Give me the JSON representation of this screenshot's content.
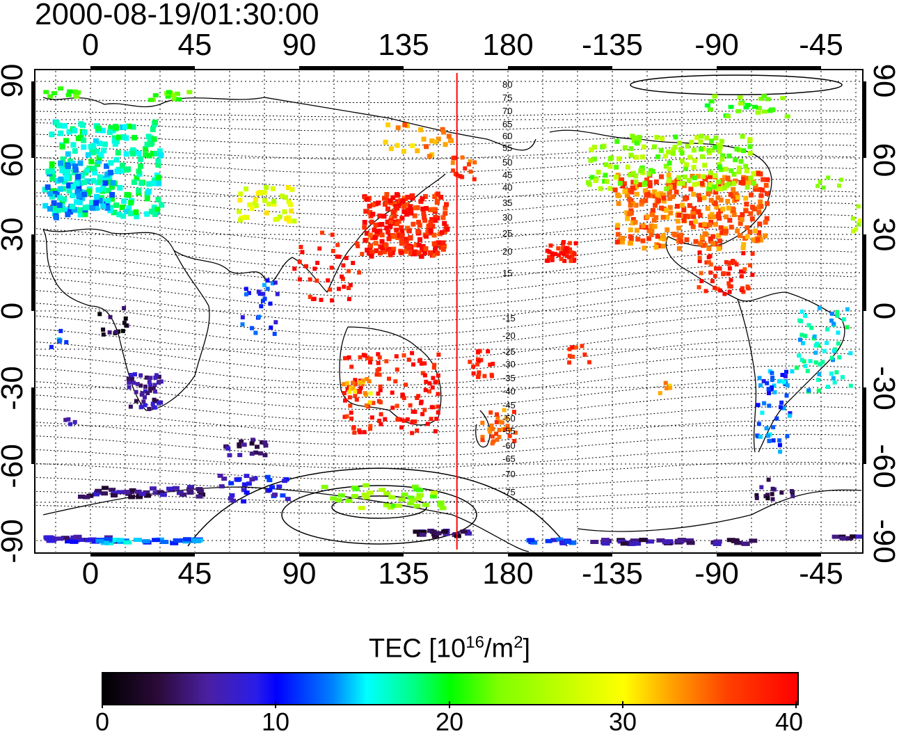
{
  "title": "2000-08-19/01:30:00",
  "longitude_ticks": [
    "0",
    "45",
    "90",
    "135",
    "180",
    "-135",
    "-90",
    "-45"
  ],
  "latitude_ticks": [
    "90",
    "60",
    "30",
    "0",
    "-30",
    "-60",
    "-90"
  ],
  "contour_labels": [
    "80",
    "75",
    "70",
    "65",
    "60",
    "55",
    "50",
    "45",
    "40",
    "35",
    "30",
    "25",
    "20",
    "15",
    "-15",
    "-20",
    "-25",
    "-30",
    "-35",
    "-40",
    "-45",
    "-50",
    "-55",
    "-60",
    "-65",
    "-70",
    "-75"
  ],
  "colorbar": {
    "label_prefix": "TEC  [10",
    "label_sup1": "16",
    "label_mid": "/m",
    "label_sup2": "2",
    "label_suffix": "]",
    "ticks": [
      "0",
      "10",
      "20",
      "30",
      "40"
    ],
    "colors": [
      "#000000",
      "#3a0a6e",
      "#0000ff",
      "#00ffff",
      "#00ff00",
      "#ffff00",
      "#ff8000",
      "#ff0000"
    ]
  },
  "reference_line": {
    "longitude": 155,
    "color": "#ff0000"
  }
}
